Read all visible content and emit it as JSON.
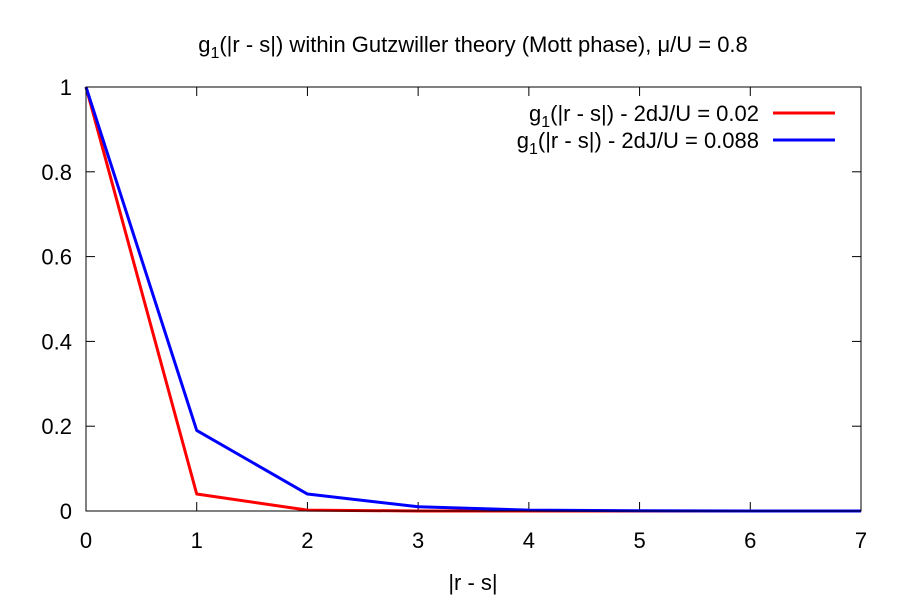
{
  "chart_data": {
    "type": "line",
    "title": {
      "prefix": "g",
      "sub": "1",
      "rest": "(|r - s|) within Gutzwiller theory (Mott phase), μ/U = 0.8"
    },
    "xlabel": "|r - s|",
    "ylabel": "",
    "xlim": [
      0,
      7
    ],
    "ylim": [
      0,
      1
    ],
    "x_ticks": [
      "0",
      "1",
      "2",
      "3",
      "4",
      "5",
      "6",
      "7"
    ],
    "y_ticks": [
      "0",
      "0.2",
      "0.4",
      "0.6",
      "0.8",
      "1"
    ],
    "grid": false,
    "legend_position": "top-right",
    "x": [
      0,
      1,
      2,
      3,
      4,
      5,
      6,
      7
    ],
    "series": [
      {
        "name": {
          "prefix": "g",
          "sub": "1",
          "rest": "(|r - s|) - 2dJ/U = 0.02"
        },
        "color": "#ff0000",
        "values": [
          1.0,
          0.04,
          0.002,
          0.0001,
          0.0,
          0.0,
          0.0,
          0.0
        ]
      },
      {
        "name": {
          "prefix": "g",
          "sub": "1",
          "rest": "(|r - s|) - 2dJ/U = 0.088"
        },
        "color": "#0000ff",
        "values": [
          1.0,
          0.19,
          0.04,
          0.01,
          0.002,
          0.0005,
          0.0001,
          0.0
        ]
      }
    ]
  }
}
